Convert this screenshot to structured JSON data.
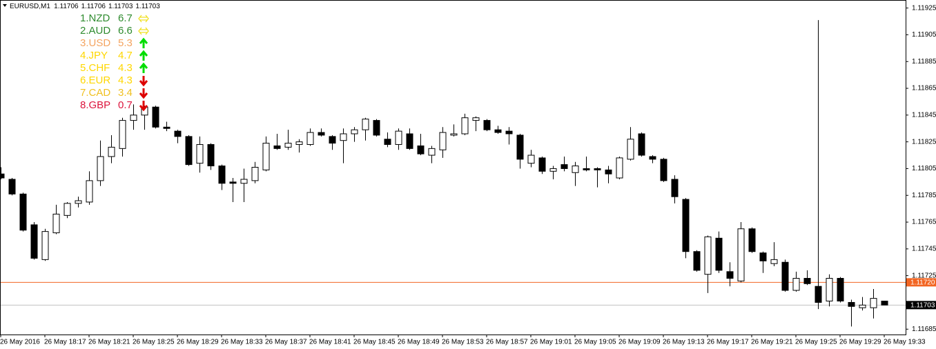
{
  "chart_data": {
    "type": "candlestick",
    "symbol": "EURUSD,M1",
    "ohlc_header": [
      1.11706,
      1.11706,
      1.11703,
      1.11703
    ],
    "categories": [
      "26 May 2016",
      null,
      null,
      null,
      "26 May 18:17",
      null,
      null,
      null,
      "26 May 18:21",
      null,
      null,
      null,
      "26 May 18:25",
      null,
      null,
      null,
      "26 May 18:29",
      null,
      null,
      null,
      "26 May 18:33",
      null,
      null,
      null,
      "26 May 18:37",
      null,
      null,
      null,
      "26 May 18:41",
      null,
      null,
      null,
      "26 May 18:45",
      null,
      null,
      null,
      "26 May 18:49",
      null,
      null,
      null,
      "26 May 18:53",
      null,
      null,
      null,
      "26 May 18:57",
      null,
      null,
      null,
      "26 May 19:01",
      null,
      null,
      null,
      "26 May 19:05",
      null,
      null,
      null,
      "26 May 19:09",
      null,
      null,
      null,
      "26 May 19:13",
      null,
      null,
      null,
      "26 May 19:17",
      null,
      null,
      null,
      "26 May 19:21",
      null,
      null,
      null,
      "26 May 19:25",
      null,
      null,
      null,
      "26 May 19:29",
      null,
      null,
      null,
      "26 May 19:33"
    ],
    "open": [
      1.11801,
      1.11797,
      1.11786,
      1.11763,
      1.11737,
      1.11757,
      1.1177,
      1.11779,
      1.1178,
      1.11796,
      1.11814,
      1.1182,
      1.11841,
      1.11845,
      1.11851,
      1.11836,
      1.11833,
      1.11829,
      1.11809,
      1.11823,
      1.11807,
      1.11795,
      1.11794,
      1.11796,
      1.11804,
      1.11822,
      1.11821,
      1.11823,
      1.11823,
      1.11832,
      1.11829,
      1.11826,
      1.11831,
      1.11834,
      1.11841,
      1.11827,
      1.11823,
      1.11831,
      1.11822,
      1.11815,
      1.11819,
      1.1183,
      1.11831,
      1.11841,
      1.11841,
      1.11834,
      1.11833,
      1.1183,
      1.11809,
      1.11813,
      1.11803,
      1.11808,
      1.11802,
      1.11805,
      1.11805,
      1.11804,
      1.11798,
      1.11812,
      1.11831,
      1.11814,
      1.11812,
      1.11797,
      1.11782,
      1.11743,
      1.11726,
      1.11753,
      1.11728,
      1.11721,
      1.1176,
      1.11742,
      1.11734,
      1.11735,
      1.11714,
      1.11723,
      1.11717,
      1.11706,
      1.11723,
      1.11705,
      1.11701,
      1.11701,
      1.11706
    ],
    "high": [
      1.11806,
      1.11798,
      1.11787,
      1.11765,
      1.1176,
      1.11778,
      1.1178,
      1.11784,
      1.11803,
      1.11826,
      1.1183,
      1.11843,
      1.11853,
      1.11852,
      1.11852,
      1.1184,
      1.11834,
      1.1183,
      1.11829,
      1.11824,
      1.11808,
      1.11798,
      1.11805,
      1.1181,
      1.11829,
      1.11831,
      1.11834,
      1.11827,
      1.11835,
      1.11835,
      1.1183,
      1.11835,
      1.11836,
      1.11843,
      1.11842,
      1.11832,
      1.11835,
      1.11835,
      1.11831,
      1.11822,
      1.11836,
      1.11838,
      1.11846,
      1.11844,
      1.11842,
      1.11837,
      1.11836,
      1.11831,
      1.11819,
      1.11814,
      1.11807,
      1.11814,
      1.1181,
      1.11814,
      1.11806,
      1.11807,
      1.11814,
      1.11836,
      1.11832,
      1.11815,
      1.11813,
      1.118,
      1.11783,
      1.11744,
      1.11755,
      1.11758,
      1.11735,
      1.11765,
      1.11761,
      1.11743,
      1.1175,
      1.11737,
      1.11728,
      1.11729,
      1.11916,
      1.11726,
      1.11724,
      1.11707,
      1.11709,
      1.11715,
      1.11706
    ],
    "low": [
      1.11797,
      1.11785,
      1.11758,
      1.11737,
      1.11736,
      1.11756,
      1.11768,
      1.11776,
      1.11778,
      1.11792,
      1.11809,
      1.11814,
      1.11834,
      1.11834,
      1.11835,
      1.11833,
      1.11824,
      1.11807,
      1.11802,
      1.11804,
      1.11789,
      1.1178,
      1.1178,
      1.11794,
      1.11803,
      1.11819,
      1.11819,
      1.11817,
      1.11822,
      1.11829,
      1.11819,
      1.11809,
      1.11825,
      1.11826,
      1.11829,
      1.11821,
      1.11819,
      1.11819,
      1.11815,
      1.11809,
      1.11813,
      1.11829,
      1.1183,
      1.11833,
      1.11833,
      1.11831,
      1.11823,
      1.11805,
      1.11806,
      1.11801,
      1.11797,
      1.11803,
      1.11792,
      1.11803,
      1.11791,
      1.11794,
      1.11797,
      1.11811,
      1.11814,
      1.11809,
      1.11795,
      1.11779,
      1.11738,
      1.11728,
      1.11712,
      1.11727,
      1.11717,
      1.1172,
      1.11742,
      1.11727,
      1.11732,
      1.11713,
      1.11713,
      1.11718,
      1.117,
      1.11702,
      1.11705,
      1.11687,
      1.11699,
      1.11693,
      1.11703
    ],
    "close": [
      1.11798,
      1.11786,
      1.11759,
      1.11738,
      1.11758,
      1.11771,
      1.11779,
      1.11781,
      1.11796,
      1.11814,
      1.11821,
      1.11841,
      1.11845,
      1.11851,
      1.11836,
      1.11835,
      1.11829,
      1.11808,
      1.11823,
      1.11807,
      1.11794,
      1.11794,
      1.11797,
      1.11806,
      1.11824,
      1.1182,
      1.11824,
      1.11825,
      1.11832,
      1.1183,
      1.11824,
      1.11831,
      1.11834,
      1.11842,
      1.1183,
      1.11823,
      1.11833,
      1.1182,
      1.11816,
      1.1182,
      1.11832,
      1.11831,
      1.11843,
      1.11843,
      1.11834,
      1.11832,
      1.11831,
      1.11812,
      1.11815,
      1.11803,
      1.11805,
      1.11805,
      1.11807,
      1.11804,
      1.11804,
      1.11801,
      1.11813,
      1.11827,
      1.11815,
      1.11812,
      1.11796,
      1.11784,
      1.11743,
      1.11729,
      1.11754,
      1.11729,
      1.11723,
      1.1176,
      1.11743,
      1.11736,
      1.11737,
      1.11714,
      1.11723,
      1.11719,
      1.11705,
      1.11723,
      1.11706,
      1.11702,
      1.11703,
      1.11708,
      1.11703
    ],
    "up_color": "#ffffff",
    "down_color": "#000000",
    "ylim": [
      1.11681,
      1.11931
    ],
    "yticks": [
      1.11925,
      1.11905,
      1.11885,
      1.11865,
      1.11845,
      1.11825,
      1.11805,
      1.11785,
      1.11765,
      1.11745,
      1.11725,
      1.11685
    ],
    "price_lines": [
      {
        "value": 1.1172,
        "label": "1.11720",
        "color": "#f26522",
        "box": "#f26522"
      },
      {
        "value": 1.11703,
        "label": "1.11703",
        "color": "#c0c0c0",
        "box": "#000000"
      }
    ]
  },
  "strength": [
    {
      "label": "1.NZD",
      "value": 6.7,
      "color": "#2e8b2e",
      "trend": "flat"
    },
    {
      "label": "2.AUD",
      "value": 6.6,
      "color": "#2e8b2e",
      "trend": "flat"
    },
    {
      "label": "3.USD",
      "value": 5.3,
      "color": "#f4a460",
      "trend": "up"
    },
    {
      "label": "4.JPY",
      "value": 4.7,
      "color": "#ffd700",
      "trend": "up"
    },
    {
      "label": "5.CHF",
      "value": 4.3,
      "color": "#ffd700",
      "trend": "up"
    },
    {
      "label": "6.EUR",
      "value": 4.3,
      "color": "#ffd700",
      "trend": "down"
    },
    {
      "label": "7.CAD",
      "value": 3.4,
      "color": "#f0c020",
      "trend": "down"
    },
    {
      "label": "8.GBP",
      "value": 0.7,
      "color": "#dc143c",
      "trend": "down"
    }
  ]
}
